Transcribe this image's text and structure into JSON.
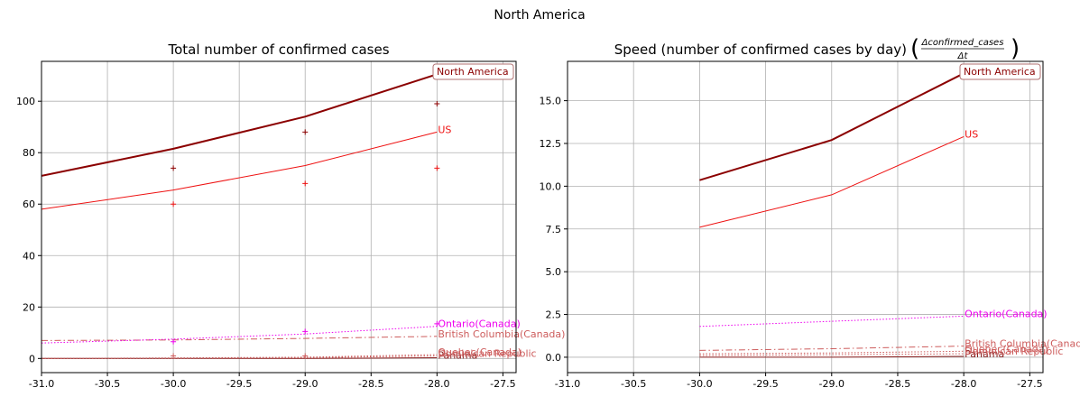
{
  "figure": {
    "suptitle": "North America"
  },
  "chart_data": [
    {
      "type": "line",
      "title": "Total number of confirmed cases",
      "xlim": [
        -31.0,
        -27.4
      ],
      "ylim": [
        -5.5,
        115.5
      ],
      "xticks": [
        "-31.0",
        "-30.5",
        "-30.0",
        "-29.5",
        "-29.0",
        "-28.5",
        "-28.0",
        "-27.5"
      ],
      "xtick_values": [
        -31.0,
        -30.5,
        -30.0,
        -29.5,
        -29.0,
        -28.5,
        -28.0,
        -27.5
      ],
      "yticks": [
        "0",
        "20",
        "40",
        "60",
        "80",
        "100"
      ],
      "ytick_values": [
        0,
        20,
        40,
        60,
        80,
        100
      ],
      "grid": true,
      "legend_box": "North America",
      "series": [
        {
          "name": "North America",
          "color": "#8b0000",
          "style": "solid",
          "width": 2,
          "x": [
            -31,
            -30,
            -29,
            -28
          ],
          "y": [
            71,
            81.5,
            94,
            110.5
          ],
          "show_label": false
        },
        {
          "name": "US",
          "color": "#ee1111",
          "style": "solid",
          "width": 1,
          "x": [
            -31,
            -30,
            -29,
            -28
          ],
          "y": [
            58,
            65.5,
            75,
            88
          ],
          "show_label": true
        },
        {
          "name": "Ontario(Canada)",
          "color": "#ee00ee",
          "style": "dotted",
          "width": 1,
          "x": [
            -31,
            -30,
            -29,
            -28
          ],
          "y": [
            6,
            7.5,
            9.5,
            12.5
          ],
          "show_label": true
        },
        {
          "name": "British Columbia(Canada)",
          "color": "#cd5c5c",
          "style": "dashdot",
          "width": 1,
          "x": [
            -31,
            -30,
            -29,
            -28
          ],
          "y": [
            7,
            7.2,
            7.8,
            8.6
          ],
          "show_label": true
        },
        {
          "name": "Quebec(Canada)",
          "color": "#cd5c5c",
          "style": "dotted",
          "width": 1,
          "x": [
            -31,
            -30,
            -29,
            -28
          ],
          "y": [
            0,
            0.2,
            0.5,
            1.5
          ],
          "show_label": true
        },
        {
          "name": "Dominican Republic",
          "color": "#cd5c5c",
          "style": "dotted",
          "width": 1,
          "x": [
            -31,
            -30,
            -29,
            -28
          ],
          "y": [
            0,
            0.1,
            0.3,
            1.0
          ],
          "show_label": true
        },
        {
          "name": "Panama",
          "color": "#8b2020",
          "style": "solid",
          "width": 1,
          "x": [
            -31,
            -30,
            -29,
            -28
          ],
          "y": [
            0,
            0,
            0,
            0.3
          ],
          "show_label": true
        }
      ],
      "markers": [
        {
          "color": "#8b0000",
          "x": [
            -30,
            -29,
            -28
          ],
          "y": [
            74,
            88,
            99
          ]
        },
        {
          "color": "#ee1111",
          "x": [
            -30,
            -29,
            -28
          ],
          "y": [
            60,
            68,
            74
          ]
        },
        {
          "color": "#ee00ee",
          "x": [
            -30,
            -29,
            -28
          ],
          "y": [
            6.5,
            10.5,
            13.5
          ]
        },
        {
          "color": "#cd5c5c",
          "x": [
            -30,
            -29
          ],
          "y": [
            1,
            1
          ]
        }
      ]
    },
    {
      "type": "line",
      "title": "Speed (number of confirmed cases by day)",
      "title_formula_numerator": "Δconfirmed_cases",
      "title_formula_denominator": "Δt",
      "xlim": [
        -31.0,
        -27.4
      ],
      "ylim": [
        -0.9,
        17.3
      ],
      "xticks": [
        "-31.0",
        "-30.5",
        "-30.0",
        "-29.5",
        "-29.0",
        "-28.5",
        "-28.0",
        "-27.5"
      ],
      "xtick_values": [
        -31.0,
        -30.5,
        -30.0,
        -29.5,
        -29.0,
        -28.5,
        -28.0,
        -27.5
      ],
      "yticks": [
        "0.0",
        "2.5",
        "5.0",
        "7.5",
        "10.0",
        "12.5",
        "15.0"
      ],
      "ytick_values": [
        0,
        2.5,
        5.0,
        7.5,
        10.0,
        12.5,
        15.0
      ],
      "grid": true,
      "legend_box": "North America",
      "series": [
        {
          "name": "North America",
          "color": "#8b0000",
          "style": "solid",
          "width": 2,
          "x": [
            -30,
            -29,
            -28
          ],
          "y": [
            10.35,
            12.7,
            16.6
          ],
          "show_label": false
        },
        {
          "name": "US",
          "color": "#ee1111",
          "style": "solid",
          "width": 1,
          "x": [
            -30,
            -29,
            -28
          ],
          "y": [
            7.6,
            9.5,
            12.9
          ],
          "show_label": true
        },
        {
          "name": "Ontario(Canada)",
          "color": "#ee00ee",
          "style": "dotted",
          "width": 1,
          "x": [
            -30,
            -29,
            -28
          ],
          "y": [
            1.8,
            2.1,
            2.4
          ],
          "show_label": true
        },
        {
          "name": "British Columbia(Canada)",
          "color": "#cd5c5c",
          "style": "dashdot",
          "width": 1,
          "x": [
            -30,
            -29,
            -28
          ],
          "y": [
            0.4,
            0.5,
            0.65
          ],
          "show_label": true
        },
        {
          "name": "Quebec(Canada)",
          "color": "#cd5c5c",
          "style": "dotted",
          "width": 1,
          "x": [
            -30,
            -29,
            -28
          ],
          "y": [
            0.2,
            0.25,
            0.35
          ],
          "show_label": true
        },
        {
          "name": "Dominican Republic",
          "color": "#cd5c5c",
          "style": "dotted",
          "width": 1,
          "x": [
            -30,
            -29,
            -28
          ],
          "y": [
            0.1,
            0.15,
            0.2
          ],
          "show_label": true
        },
        {
          "name": "Panama",
          "color": "#8b2020",
          "style": "solid",
          "width": 1,
          "x": [
            -30,
            -29,
            -28
          ],
          "y": [
            0,
            0,
            0.05
          ],
          "show_label": true
        }
      ],
      "markers": []
    }
  ]
}
